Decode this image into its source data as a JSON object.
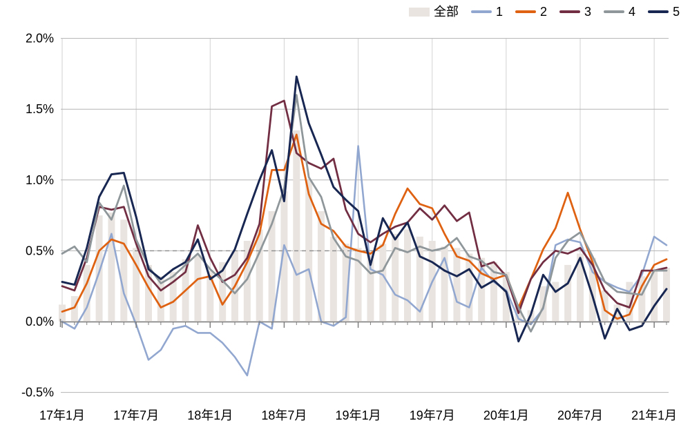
{
  "legend": {
    "items": [
      {
        "label": "全部",
        "type": "bar",
        "color": "#e9e4e0"
      },
      {
        "label": "1",
        "type": "line",
        "color": "#92a7cf"
      },
      {
        "label": "2",
        "type": "line",
        "color": "#de6212"
      },
      {
        "label": "3",
        "type": "line",
        "color": "#722f44"
      },
      {
        "label": "4",
        "type": "line",
        "color": "#8f979b"
      },
      {
        "label": "5",
        "type": "line",
        "color": "#182752"
      }
    ]
  },
  "y_axis": {
    "tick_labels": [
      "2.0%",
      "1.5%",
      "1.0%",
      "0.5%",
      "0.0%",
      "-0.5%"
    ],
    "tick_values": [
      2.0,
      1.5,
      1.0,
      0.5,
      0.0,
      -0.5
    ]
  },
  "x_axis": {
    "tick_labels": [
      "17年1月",
      "17年7月",
      "18年1月",
      "18年7月",
      "19年1月",
      "19年7月",
      "20年1月",
      "20年7月",
      "21年1月"
    ],
    "tick_month_indices": [
      0,
      6,
      12,
      18,
      24,
      30,
      36,
      42,
      48
    ]
  },
  "chart_data": {
    "type": "bar+line",
    "title": "",
    "xlabel": "",
    "ylabel": "",
    "ylim": [
      -0.5,
      2.0
    ],
    "y_unit": "%",
    "grid": "horizontal; vertical at 6-month majors; dashed reference segment at 0.5%",
    "legend_position": "top-right",
    "categories": [
      "17年1月",
      "17年2月",
      "17年3月",
      "17年4月",
      "17年5月",
      "17年6月",
      "17年7月",
      "17年8月",
      "17年9月",
      "17年10月",
      "17年11月",
      "17年12月",
      "18年1月",
      "18年2月",
      "18年3月",
      "18年4月",
      "18年5月",
      "18年6月",
      "18年7月",
      "18年8月",
      "18年9月",
      "18年10月",
      "18年11月",
      "18年12月",
      "19年1月",
      "19年2月",
      "19年3月",
      "19年4月",
      "19年5月",
      "19年6月",
      "19年7月",
      "19年8月",
      "19年9月",
      "19年10月",
      "19年11月",
      "19年12月",
      "20年1月",
      "20年2月",
      "20年3月",
      "20年4月",
      "20年5月",
      "20年6月",
      "20年7月",
      "20年8月",
      "20年9月",
      "20年10月",
      "20年11月",
      "20年12月",
      "21年1月",
      "21年2月"
    ],
    "series": [
      {
        "name": "全部",
        "type": "bar",
        "color": "#e9e4e0",
        "values": [
          0.12,
          0.18,
          0.4,
          0.75,
          0.77,
          0.72,
          0.52,
          0.4,
          0.32,
          0.35,
          0.44,
          0.47,
          0.36,
          0.42,
          0.5,
          0.57,
          0.65,
          0.78,
          0.92,
          1.35,
          1.0,
          0.78,
          0.6,
          0.55,
          0.52,
          0.48,
          0.55,
          0.62,
          0.65,
          0.6,
          0.57,
          0.53,
          0.52,
          0.48,
          0.45,
          0.42,
          0.35,
          0.12,
          0.08,
          0.25,
          0.28,
          0.4,
          0.48,
          0.45,
          0.22,
          0.12,
          0.28,
          0.32,
          0.36,
          0.38
        ]
      },
      {
        "name": "1",
        "type": "line",
        "color": "#92a7cf",
        "width": 2.6,
        "values": [
          0.0,
          -0.05,
          0.1,
          0.35,
          0.62,
          0.2,
          -0.02,
          -0.27,
          -0.2,
          -0.05,
          -0.03,
          -0.08,
          -0.08,
          -0.15,
          -0.25,
          -0.38,
          0.0,
          -0.05,
          0.54,
          0.33,
          0.37,
          0.0,
          -0.03,
          0.03,
          1.24,
          0.37,
          0.33,
          0.19,
          0.15,
          0.07,
          0.28,
          0.45,
          0.14,
          0.1,
          0.38,
          0.28,
          0.22,
          0.02,
          -0.02,
          0.09,
          0.54,
          0.58,
          0.56,
          0.35,
          0.28,
          0.24,
          0.21,
          0.33,
          0.6,
          0.54
        ]
      },
      {
        "name": "2",
        "type": "line",
        "color": "#de6212",
        "width": 2.8,
        "values": [
          0.07,
          0.1,
          0.27,
          0.5,
          0.58,
          0.55,
          0.4,
          0.24,
          0.1,
          0.14,
          0.22,
          0.3,
          0.32,
          0.12,
          0.25,
          0.42,
          0.62,
          1.07,
          1.07,
          1.32,
          0.9,
          0.69,
          0.64,
          0.53,
          0.5,
          0.48,
          0.54,
          0.76,
          0.94,
          0.83,
          0.8,
          0.62,
          0.46,
          0.43,
          0.34,
          0.3,
          0.33,
          0.1,
          0.3,
          0.51,
          0.66,
          0.91,
          0.65,
          0.42,
          0.08,
          0.02,
          0.05,
          0.25,
          0.4,
          0.44
        ]
      },
      {
        "name": "3",
        "type": "line",
        "color": "#722f44",
        "width": 2.8,
        "values": [
          0.25,
          0.22,
          0.45,
          0.81,
          0.79,
          0.81,
          0.55,
          0.32,
          0.22,
          0.28,
          0.35,
          0.68,
          0.45,
          0.28,
          0.33,
          0.45,
          0.69,
          1.52,
          1.56,
          1.19,
          1.12,
          1.08,
          1.15,
          0.79,
          0.62,
          0.56,
          0.62,
          0.67,
          0.7,
          0.8,
          0.72,
          0.82,
          0.71,
          0.77,
          0.39,
          0.42,
          0.32,
          0.06,
          0.3,
          0.42,
          0.5,
          0.48,
          0.52,
          0.4,
          0.22,
          0.13,
          0.1,
          0.36,
          0.36,
          0.38
        ]
      },
      {
        "name": "4",
        "type": "line",
        "color": "#8f979b",
        "width": 2.8,
        "values": [
          0.48,
          0.53,
          0.42,
          0.84,
          0.72,
          0.96,
          0.58,
          0.39,
          0.27,
          0.32,
          0.4,
          0.48,
          0.37,
          0.29,
          0.2,
          0.3,
          0.49,
          0.69,
          0.94,
          1.6,
          1.02,
          0.88,
          0.59,
          0.46,
          0.43,
          0.34,
          0.36,
          0.52,
          0.49,
          0.53,
          0.5,
          0.52,
          0.59,
          0.46,
          0.43,
          0.35,
          0.33,
          0.1,
          -0.07,
          0.1,
          0.45,
          0.57,
          0.63,
          0.46,
          0.28,
          0.21,
          0.2,
          0.19,
          0.36,
          0.36
        ]
      },
      {
        "name": "5",
        "type": "line",
        "color": "#182752",
        "width": 3.0,
        "values": [
          0.28,
          0.26,
          0.52,
          0.88,
          1.04,
          1.05,
          0.74,
          0.37,
          0.3,
          0.37,
          0.42,
          0.58,
          0.3,
          0.36,
          0.51,
          0.76,
          1.0,
          1.21,
          0.85,
          1.73,
          1.4,
          1.18,
          0.95,
          0.86,
          0.78,
          0.4,
          0.73,
          0.58,
          0.7,
          0.46,
          0.42,
          0.36,
          0.32,
          0.37,
          0.24,
          0.29,
          0.21,
          -0.14,
          0.05,
          0.33,
          0.21,
          0.27,
          0.45,
          0.18,
          -0.12,
          0.09,
          -0.06,
          -0.03,
          0.11,
          0.23
        ]
      }
    ],
    "style": {
      "gridline_color": "#b3b3b3",
      "vertical_gridline_color": "#d2d2d2",
      "axis_color": "#7f7f7f",
      "dashed_ref_color": "#8c8c8c",
      "text_color": "#000000",
      "background": "#ffffff"
    }
  }
}
